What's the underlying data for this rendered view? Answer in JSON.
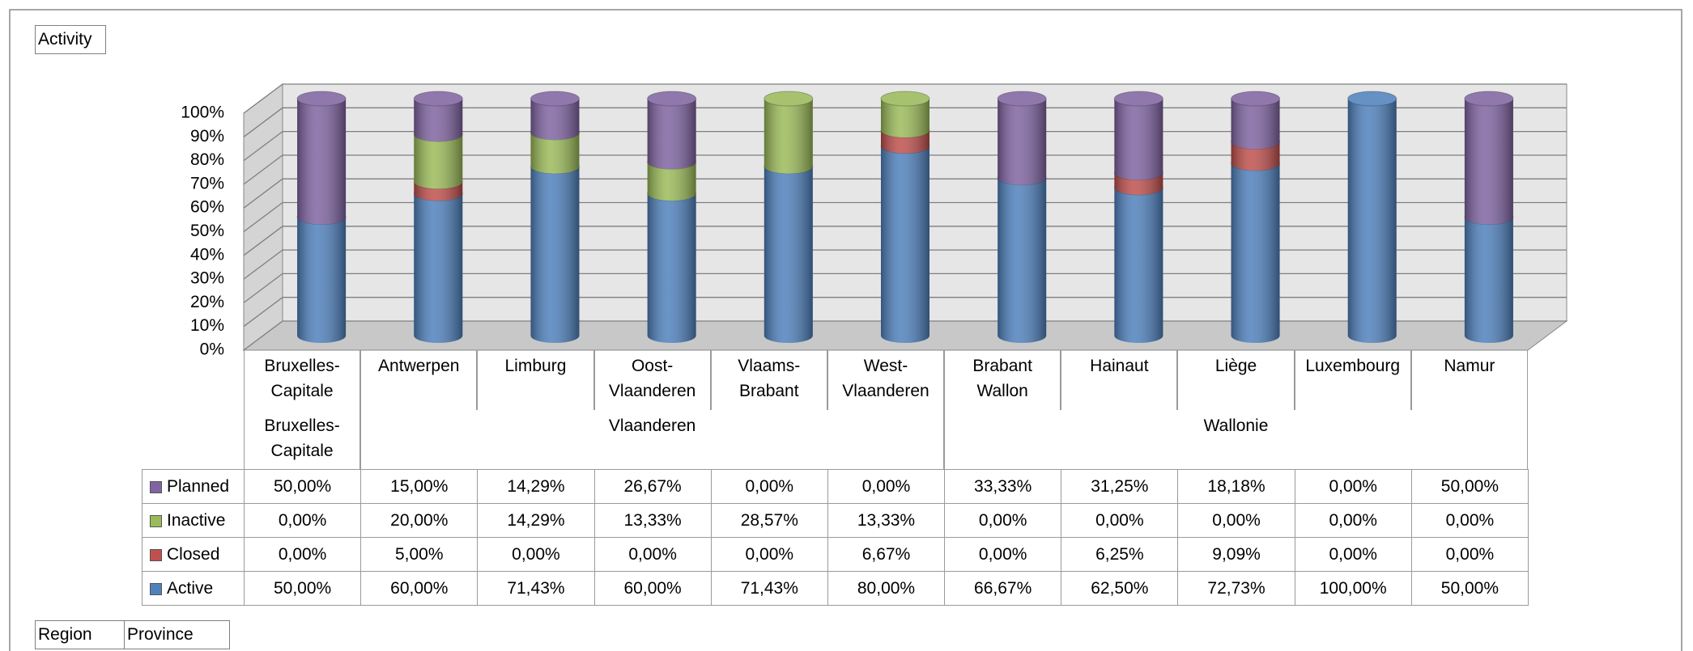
{
  "chart_data": {
    "type": "bar",
    "stacked": true,
    "legend_field": "Activity",
    "axis_fields": [
      "Region",
      "Province"
    ],
    "categories": [
      "Bruxelles-Capitale",
      "Antwerpen",
      "Limburg",
      "Oost-Vlaanderen",
      "Vlaams-Brabant",
      "West-Vlaanderen",
      "Brabant Wallon",
      "Hainaut",
      "Liège",
      "Luxembourg",
      "Namur"
    ],
    "category_groups": [
      {
        "label": "Bruxelles-Capitale",
        "span": 1
      },
      {
        "label": "Vlaanderen",
        "span": 5
      },
      {
        "label": "Wallonie",
        "span": 5
      }
    ],
    "series": [
      {
        "name": "Active",
        "color": "#4f81bd",
        "values": [
          50,
          60,
          71.43,
          60,
          71.43,
          80,
          66.67,
          62.5,
          72.73,
          100,
          50
        ],
        "value_labels": [
          "50,00%",
          "60,00%",
          "71,43%",
          "60,00%",
          "71,43%",
          "80,00%",
          "66,67%",
          "62,50%",
          "72,73%",
          "100,00%",
          "50,00%"
        ]
      },
      {
        "name": "Closed",
        "color": "#c0504d",
        "values": [
          0,
          5,
          0,
          0,
          0,
          6.67,
          0,
          6.25,
          9.09,
          0,
          0
        ],
        "value_labels": [
          "0,00%",
          "5,00%",
          "0,00%",
          "0,00%",
          "0,00%",
          "6,67%",
          "0,00%",
          "6,25%",
          "9,09%",
          "0,00%",
          "0,00%"
        ]
      },
      {
        "name": "Inactive",
        "color": "#9bbb59",
        "values": [
          0,
          20,
          14.29,
          13.33,
          28.57,
          13.33,
          0,
          0,
          0,
          0,
          0
        ],
        "value_labels": [
          "0,00%",
          "20,00%",
          "14,29%",
          "13,33%",
          "28,57%",
          "13,33%",
          "0,00%",
          "0,00%",
          "0,00%",
          "0,00%",
          "0,00%"
        ]
      },
      {
        "name": "Planned",
        "color": "#8064a2",
        "values": [
          50,
          15,
          14.29,
          26.67,
          0,
          0,
          33.33,
          31.25,
          18.18,
          0,
          50
        ],
        "value_labels": [
          "50,00%",
          "15,00%",
          "14,29%",
          "26,67%",
          "0,00%",
          "0,00%",
          "33,33%",
          "31,25%",
          "18,18%",
          "0,00%",
          "50,00%"
        ]
      }
    ],
    "ylim": [
      0,
      100
    ],
    "yticks": [
      {
        "value": 0,
        "label": "0%"
      },
      {
        "value": 10,
        "label": "10%"
      },
      {
        "value": 20,
        "label": "20%"
      },
      {
        "value": 30,
        "label": "30%"
      },
      {
        "value": 40,
        "label": "40%"
      },
      {
        "value": 50,
        "label": "50%"
      },
      {
        "value": 60,
        "label": "60%"
      },
      {
        "value": 70,
        "label": "70%"
      },
      {
        "value": 80,
        "label": "80%"
      },
      {
        "value": 90,
        "label": "90%"
      },
      {
        "value": 100,
        "label": "100%"
      }
    ],
    "grid": true
  }
}
